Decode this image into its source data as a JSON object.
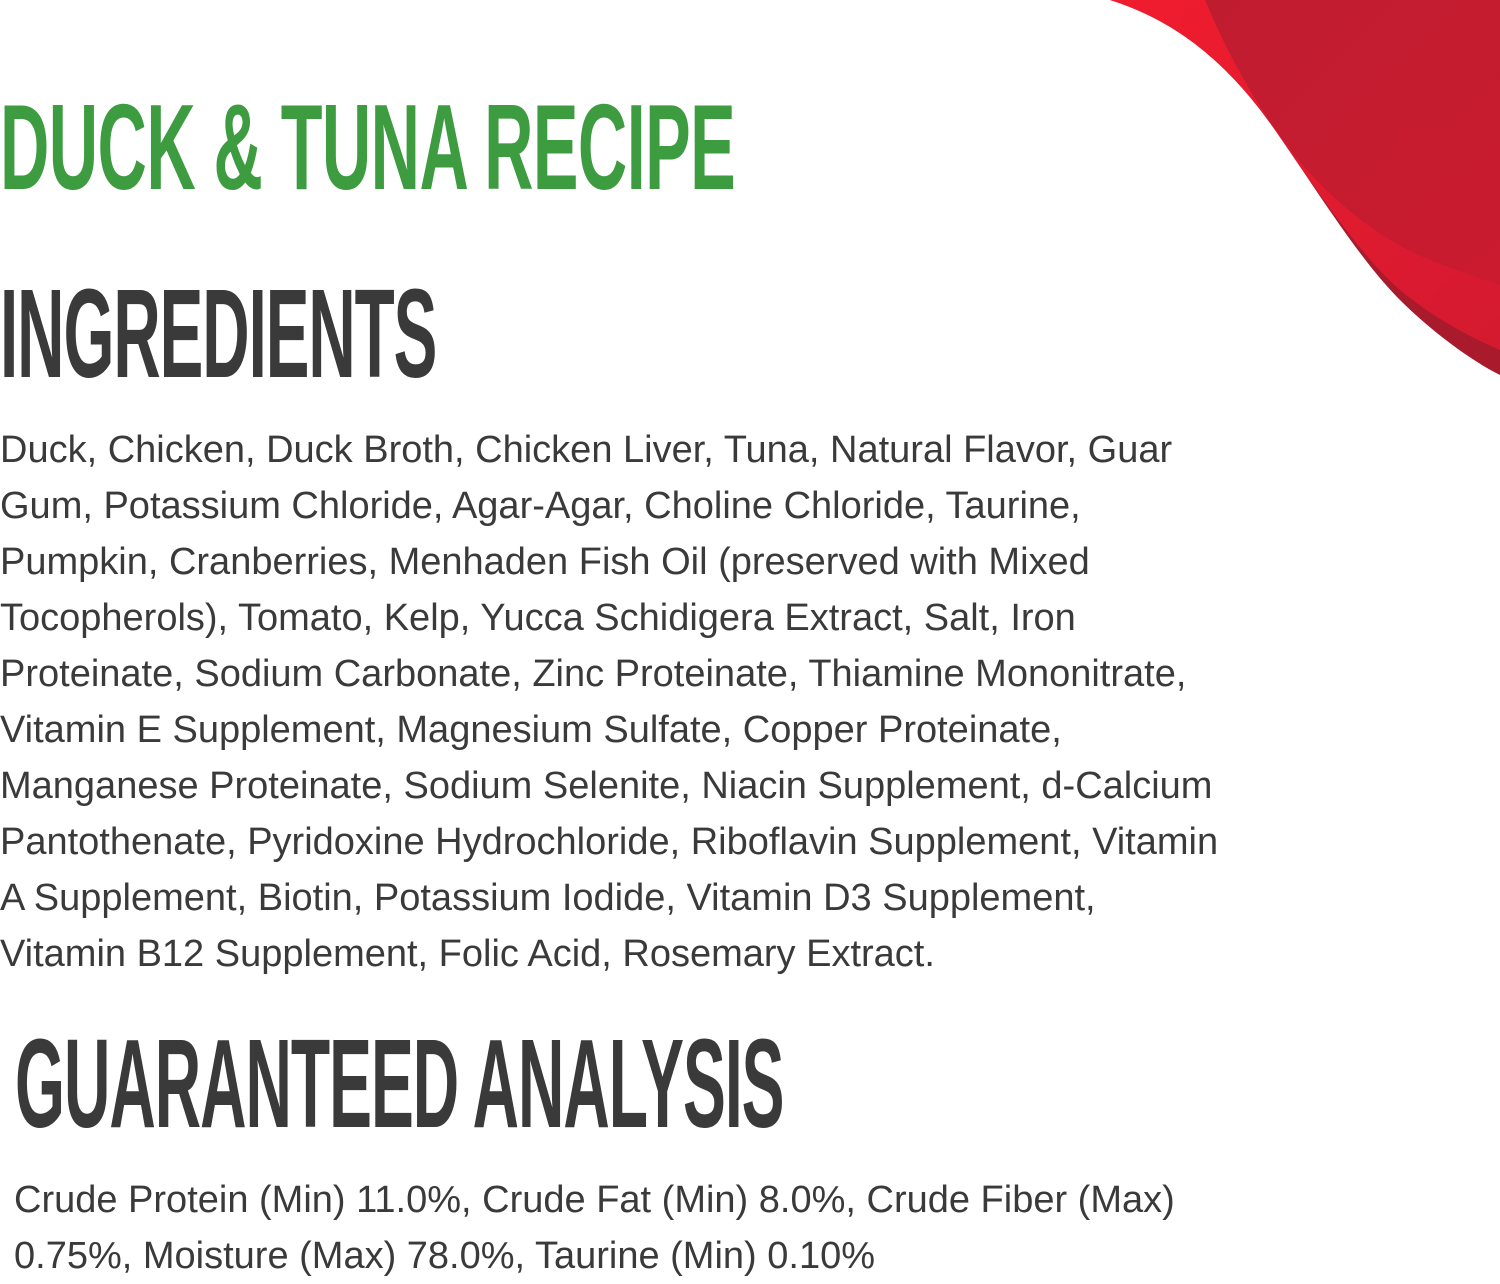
{
  "title": "DUCK & TUNA RECIPE",
  "ingredients": {
    "heading": "INGREDIENTS",
    "lines": [
      "Duck, Chicken, Duck Broth, Chicken Liver, Tuna, Natural Flavor, Guar",
      "Gum, Potassium Chloride, Agar-Agar, Choline Chloride, Taurine,",
      "Pumpkin, Cranberries, Menhaden Fish Oil (preserved with Mixed",
      "Tocopherols), Tomato, Kelp, Yucca Schidigera Extract, Salt, Iron",
      "Proteinate, Sodium Carbonate, Zinc Proteinate, Thiamine Mononitrate,",
      "Vitamin E Supplement, Magnesium Sulfate, Copper Proteinate,",
      "Manganese Proteinate, Sodium Selenite, Niacin Supplement, d-Calcium",
      "Pantothenate, Pyridoxine Hydrochloride, Riboflavin Supplement, Vitamin",
      "A Supplement, Biotin, Potassium Iodide, Vitamin D3 Supplement,",
      "Vitamin B12 Supplement, Folic Acid, Rosemary Extract."
    ]
  },
  "analysis": {
    "heading": "GUARANTEED ANALYSIS",
    "lines": [
      "Crude Protein (Min) 11.0%, Crude Fat (Min) 8.0%, Crude Fiber (Max)",
      "0.75%, Moisture (Max) 78.0%, Taurine (Min) 0.10%"
    ]
  },
  "colors": {
    "title": "#3d9b40",
    "heading": "#3a3a3a",
    "swoosh": "#e31b2f",
    "swoosh_dark": "#a81a2c"
  }
}
